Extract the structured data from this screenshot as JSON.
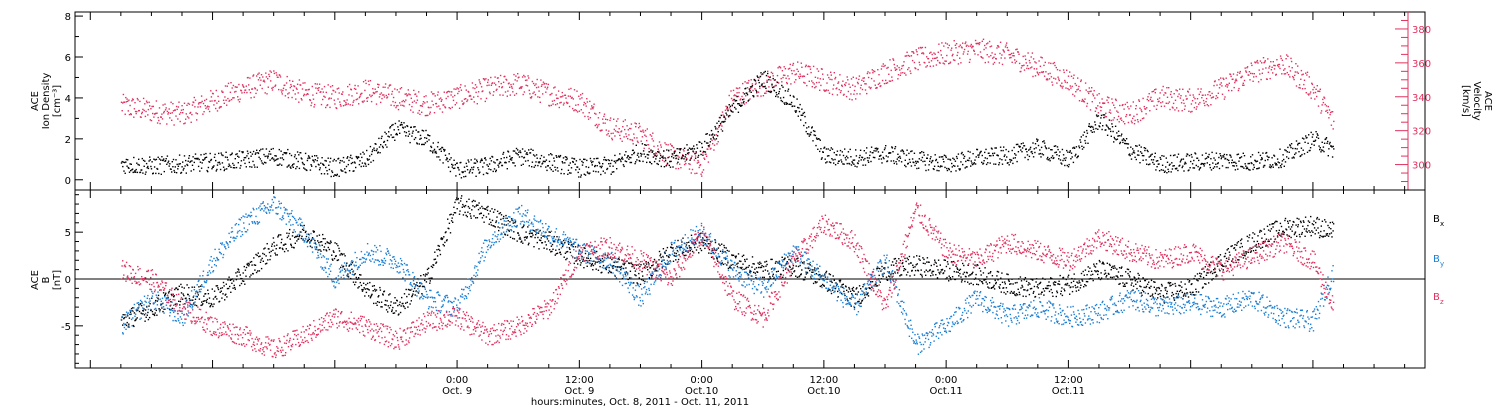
{
  "chart_data": [
    {
      "type": "scatter",
      "panel": "top",
      "left_axis": {
        "label_line1": "ACE",
        "label_line2": "Ion Density",
        "units": "[cm⁻³]",
        "ylim": [
          -0.5,
          8.2
        ],
        "ticks": [
          "0",
          "2",
          "4",
          "6",
          "8"
        ],
        "color": "#000000"
      },
      "right_axis": {
        "label_line1": "ACE",
        "label_line2": "Velocity",
        "units": "[km/s]",
        "ylim": [
          285,
          390
        ],
        "ticks": [
          "300",
          "320",
          "340",
          "360",
          "380"
        ],
        "color": "#e0325f"
      },
      "series": [
        {
          "axis": "left",
          "color": "#000000",
          "x_hours": [
            -33,
            -30,
            -27,
            -24,
            -21,
            -18,
            -15,
            -12,
            -9,
            -6,
            -3,
            0,
            3,
            6,
            9,
            12,
            15,
            18,
            21,
            24,
            27,
            30,
            33,
            36,
            39,
            42,
            45,
            48,
            51,
            54,
            57,
            60,
            63,
            66,
            69,
            72,
            75,
            78,
            81,
            84,
            86
          ],
          "values": [
            0.8,
            0.7,
            0.8,
            0.9,
            1.0,
            1.2,
            0.9,
            0.6,
            1.0,
            2.5,
            2.0,
            0.5,
            0.7,
            1.2,
            0.9,
            0.6,
            0.7,
            1.4,
            1.0,
            1.6,
            3.5,
            5.0,
            3.8,
            1.2,
            1.1,
            1.3,
            1.0,
            0.8,
            1.1,
            1.2,
            1.6,
            1.0,
            3.0,
            1.5,
            0.8,
            0.9,
            1.0,
            0.9,
            1.1,
            2.0,
            1.5
          ]
        },
        {
          "axis": "right",
          "color": "#e0325f",
          "x_hours": [
            -33,
            -30,
            -27,
            -24,
            -21,
            -18,
            -15,
            -12,
            -9,
            -6,
            -3,
            0,
            3,
            6,
            9,
            12,
            15,
            18,
            21,
            24,
            27,
            30,
            33,
            36,
            39,
            42,
            45,
            48,
            51,
            54,
            57,
            60,
            63,
            66,
            69,
            72,
            75,
            78,
            81,
            84,
            86
          ],
          "values": [
            335,
            332,
            330,
            338,
            345,
            350,
            342,
            340,
            344,
            340,
            336,
            340,
            345,
            348,
            342,
            338,
            322,
            318,
            305,
            300,
            340,
            348,
            355,
            350,
            345,
            355,
            362,
            366,
            368,
            365,
            358,
            350,
            335,
            330,
            340,
            338,
            345,
            355,
            360,
            345,
            325
          ]
        }
      ]
    },
    {
      "type": "scatter",
      "panel": "bottom",
      "left_axis": {
        "label_line1": "ACE",
        "label_line2": "B",
        "units": "[nT]",
        "ylim": [
          -9.5,
          9.5
        ],
        "ticks": [
          "-5",
          "0",
          "5"
        ]
      },
      "series": [
        {
          "name": "Bx",
          "legend_main": "B",
          "legend_sub": "x",
          "color": "#000000",
          "x_hours": [
            -33,
            -30,
            -27,
            -24,
            -21,
            -18,
            -15,
            -12,
            -9,
            -6,
            -3,
            0,
            3,
            6,
            9,
            12,
            15,
            18,
            21,
            24,
            27,
            30,
            33,
            36,
            39,
            42,
            45,
            48,
            51,
            54,
            57,
            60,
            63,
            66,
            69,
            72,
            75,
            78,
            81,
            84,
            86
          ],
          "values": [
            -4.5,
            -3.0,
            -1.5,
            -2.0,
            0.5,
            3.5,
            5.0,
            3.0,
            -1.0,
            -3.0,
            0.0,
            8.0,
            7.0,
            5.0,
            4.0,
            2.5,
            1.5,
            0.5,
            3.0,
            4.0,
            2.0,
            1.0,
            1.5,
            0.0,
            -2.0,
            1.0,
            1.5,
            1.0,
            0.5,
            -0.5,
            -1.0,
            -0.5,
            1.0,
            0.0,
            -1.5,
            -1.0,
            2.0,
            4.0,
            5.5,
            5.8,
            5.0
          ]
        },
        {
          "name": "By",
          "legend_main": "B",
          "legend_sub": "y",
          "color": "#1b7fd4",
          "x_hours": [
            -33,
            -30,
            -27,
            -24,
            -21,
            -18,
            -15,
            -12,
            -9,
            -6,
            -3,
            0,
            3,
            6,
            9,
            12,
            15,
            18,
            21,
            24,
            27,
            30,
            33,
            36,
            39,
            42,
            45,
            48,
            51,
            54,
            57,
            60,
            63,
            66,
            69,
            72,
            75,
            78,
            81,
            84,
            86
          ],
          "values": [
            -5.0,
            -2.0,
            -4.0,
            2.0,
            6.0,
            8.0,
            5.0,
            0.0,
            3.0,
            2.0,
            -2.0,
            -3.0,
            4.0,
            7.0,
            5.0,
            3.0,
            2.0,
            -2.0,
            3.0,
            5.0,
            1.0,
            -1.0,
            3.0,
            0.0,
            -3.0,
            2.0,
            -7.0,
            -5.0,
            -2.0,
            -4.0,
            -3.0,
            -4.0,
            -3.5,
            -2.0,
            -3.0,
            -2.5,
            -3.0,
            -2.0,
            -4.0,
            -4.5,
            1.0
          ]
        },
        {
          "name": "Bz",
          "legend_main": "B",
          "legend_sub": "z",
          "color": "#e0325f",
          "x_hours": [
            -33,
            -30,
            -27,
            -24,
            -21,
            -18,
            -15,
            -12,
            -9,
            -6,
            -3,
            0,
            3,
            6,
            9,
            12,
            15,
            18,
            21,
            24,
            27,
            30,
            33,
            36,
            39,
            42,
            45,
            48,
            51,
            54,
            57,
            60,
            63,
            66,
            69,
            72,
            75,
            78,
            81,
            84,
            86
          ],
          "values": [
            1.0,
            0.0,
            -3.0,
            -5.0,
            -6.0,
            -7.5,
            -6.0,
            -4.0,
            -5.0,
            -6.5,
            -4.5,
            -4.0,
            -6.0,
            -5.0,
            -3.0,
            3.0,
            3.5,
            2.0,
            0.0,
            5.0,
            -2.0,
            -4.0,
            2.0,
            6.0,
            4.0,
            -3.0,
            7.5,
            3.0,
            2.0,
            4.0,
            3.0,
            2.0,
            4.5,
            3.0,
            2.0,
            3.0,
            1.0,
            2.5,
            4.0,
            2.0,
            -3.0
          ]
        }
      ]
    }
  ],
  "x_axis": {
    "xlim_hours": [
      -37.5,
      95
    ],
    "tick_labels": [
      {
        "hours": 0,
        "line1": "0:00",
        "line2": "Oct. 9"
      },
      {
        "hours": 12,
        "line1": "12:00",
        "line2": "Oct. 9"
      },
      {
        "hours": 24,
        "line1": "0:00",
        "line2": "Oct.10"
      },
      {
        "hours": 36,
        "line1": "12:00",
        "line2": "Oct.10"
      },
      {
        "hours": 48,
        "line1": "0:00",
        "line2": "Oct.11"
      },
      {
        "hours": 60,
        "line1": "12:00",
        "line2": "Oct.11"
      }
    ],
    "title": "hours:minutes, Oct.  8, 2011 - Oct. 11, 2011"
  }
}
